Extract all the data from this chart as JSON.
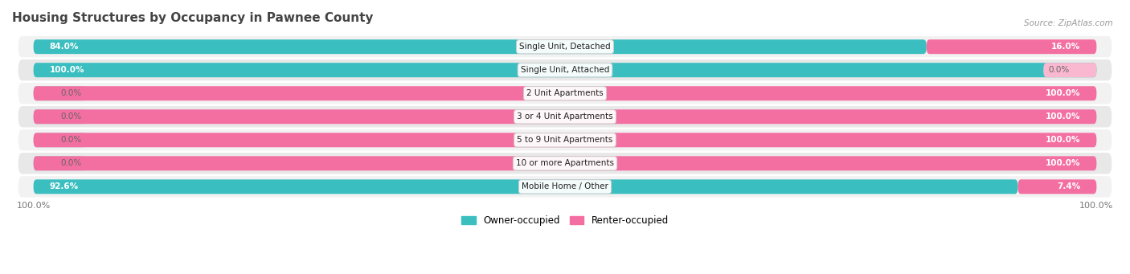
{
  "title": "Housing Structures by Occupancy in Pawnee County",
  "source": "Source: ZipAtlas.com",
  "categories": [
    "Single Unit, Detached",
    "Single Unit, Attached",
    "2 Unit Apartments",
    "3 or 4 Unit Apartments",
    "5 to 9 Unit Apartments",
    "10 or more Apartments",
    "Mobile Home / Other"
  ],
  "owner_pct": [
    84.0,
    100.0,
    0.0,
    0.0,
    0.0,
    0.0,
    92.6
  ],
  "renter_pct": [
    16.0,
    0.0,
    100.0,
    100.0,
    100.0,
    100.0,
    7.4
  ],
  "owner_color": "#3bbec0",
  "renter_color": "#f46fa1",
  "owner_color_light": "#a0d8d8",
  "renter_color_light": "#f9b8d0",
  "row_bg_even": "#f2f2f2",
  "row_bg_odd": "#e8e8e8",
  "title_color": "#444444",
  "bar_height": 0.62,
  "total_width": 100,
  "stub_size": 5,
  "figsize": [
    14.06,
    3.41
  ],
  "dpi": 100
}
